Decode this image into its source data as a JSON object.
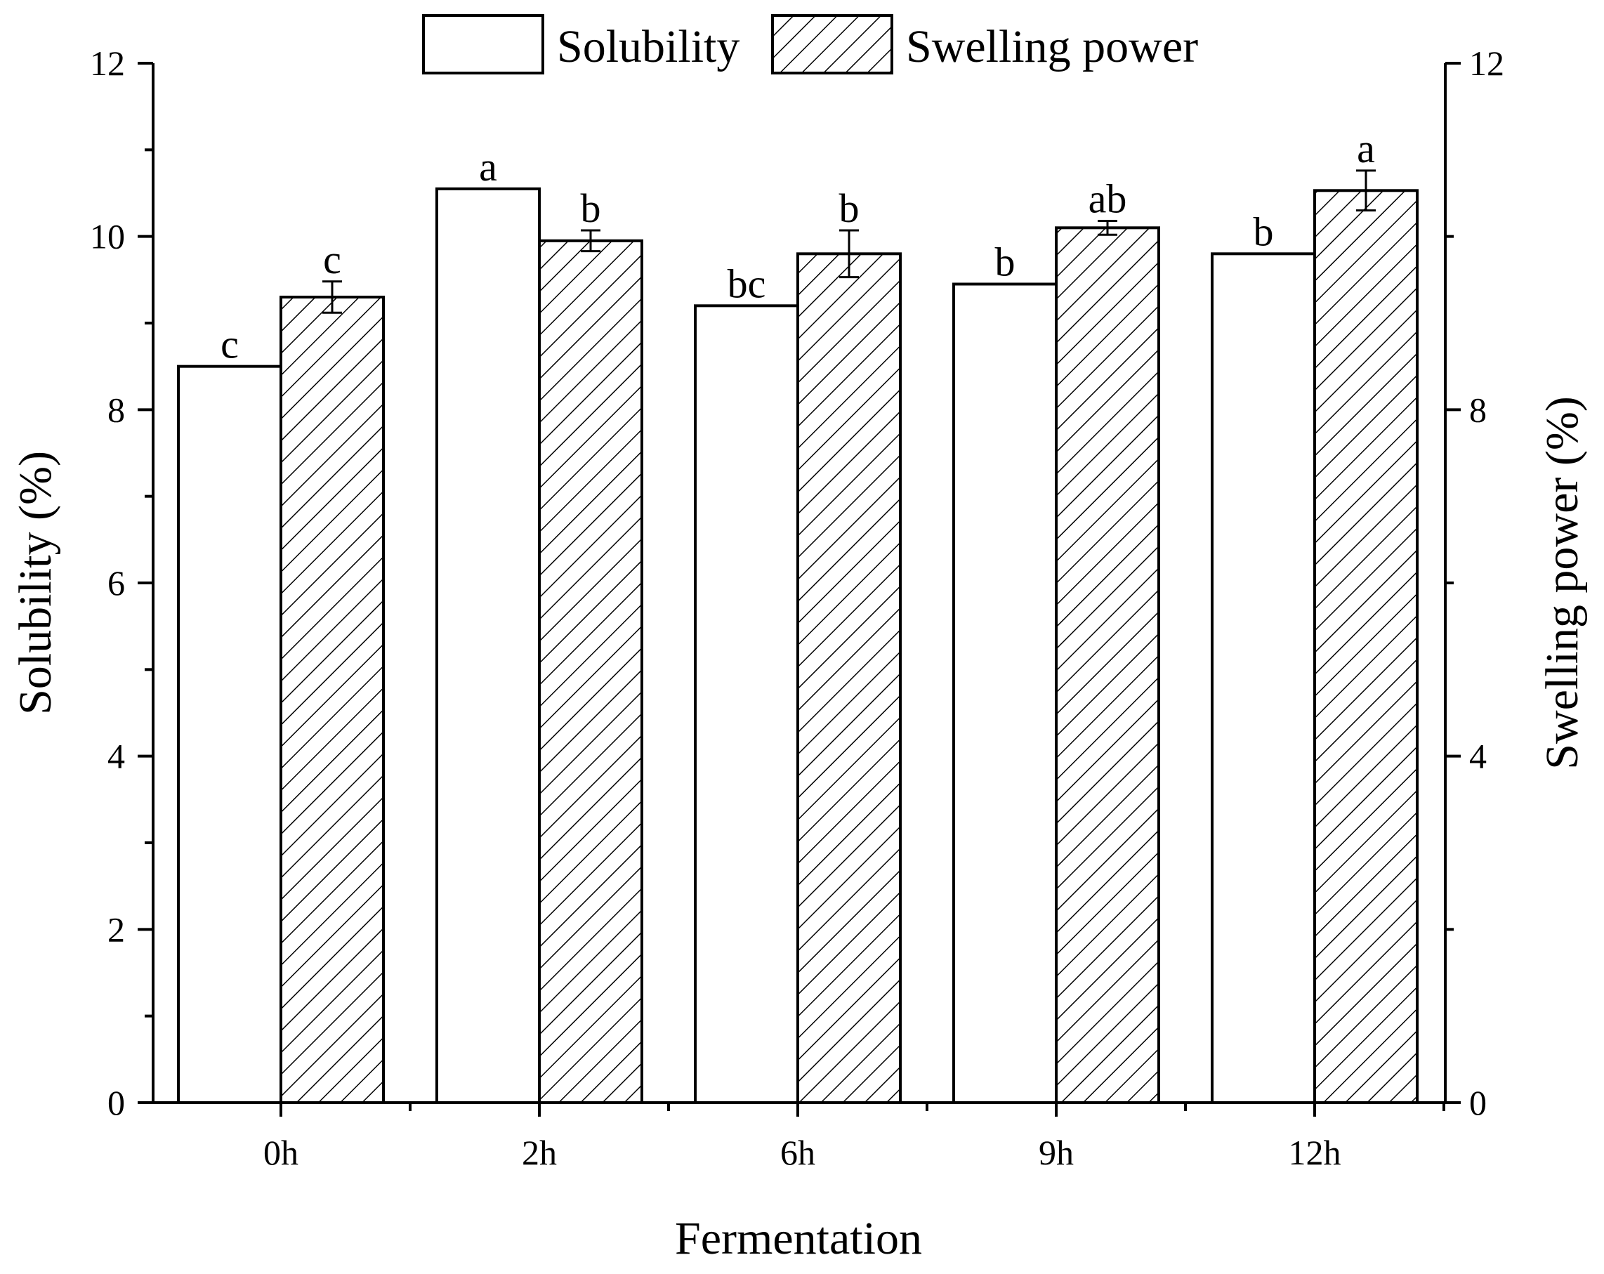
{
  "chart_data": {
    "type": "bar",
    "title": "",
    "xlabel": "Fermentation",
    "ylabel": "Solubility (%)",
    "y2label": "Swelling power (%)",
    "categories": [
      "0h",
      "2h",
      "6h",
      "9h",
      "12h"
    ],
    "ylim": [
      0,
      12
    ],
    "y2lim": [
      0,
      12
    ],
    "yticks": [
      "0",
      "2",
      "4",
      "6",
      "8",
      "10",
      "12"
    ],
    "y2ticks": [
      "0",
      "4",
      "8",
      "12"
    ],
    "legend_position": "top",
    "series": [
      {
        "name": "Solubility",
        "axis": "left",
        "pattern": "none",
        "values": [
          8.5,
          10.55,
          9.2,
          9.45,
          9.8
        ],
        "errors": [
          0,
          0,
          0,
          0,
          0
        ],
        "labels": [
          "c",
          "a",
          "bc",
          "b",
          "b"
        ]
      },
      {
        "name": "Swelling power",
        "axis": "right",
        "pattern": "hatch",
        "values": [
          9.3,
          9.95,
          9.8,
          10.1,
          10.53
        ],
        "errors": [
          0.18,
          0.12,
          0.27,
          0.08,
          0.23
        ],
        "labels": [
          "c",
          "b",
          "b",
          "ab",
          "a"
        ]
      }
    ]
  }
}
